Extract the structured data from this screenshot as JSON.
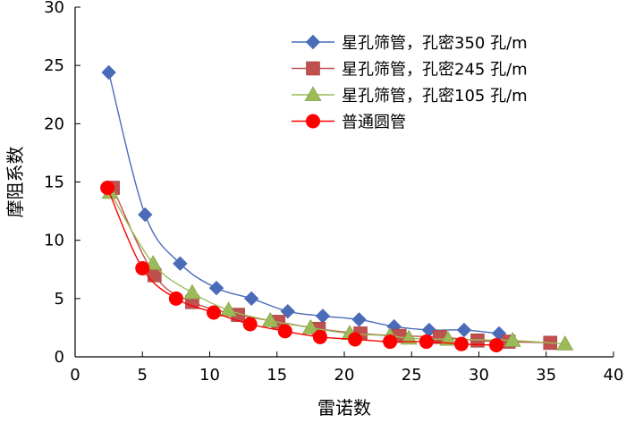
{
  "chart_data": {
    "type": "line",
    "title": "",
    "xlabel": "雷诺数",
    "ylabel": "摩阻系数",
    "xlim": [
      0,
      40
    ],
    "ylim": [
      0,
      30
    ],
    "xticks": [
      0,
      5,
      10,
      15,
      20,
      25,
      30,
      35,
      40
    ],
    "yticks": [
      0,
      5,
      10,
      15,
      20,
      25,
      30
    ],
    "grid": false,
    "legend_position": "top-right",
    "series": [
      {
        "name": "星孔筛管，孔密350 孔/m",
        "color": "#4a6bb8",
        "marker": "diamond",
        "x": [
          2.5,
          5.2,
          7.8,
          10.5,
          13.1,
          15.8,
          18.4,
          21.1,
          23.7,
          26.3,
          28.9,
          31.5
        ],
        "y": [
          24.4,
          12.2,
          8.0,
          5.9,
          5.0,
          3.9,
          3.5,
          3.2,
          2.6,
          2.3,
          2.3,
          2.0
        ]
      },
      {
        "name": "星孔筛管，孔密245 孔/m",
        "color": "#c0504d",
        "marker": "square",
        "x": [
          2.8,
          5.9,
          8.7,
          12.1,
          15.1,
          18.1,
          21.2,
          24.1,
          27.1,
          29.9,
          32.2,
          35.3
        ],
        "y": [
          14.5,
          7.0,
          4.7,
          3.6,
          3.0,
          2.4,
          2.0,
          1.8,
          1.7,
          1.4,
          1.3,
          1.2
        ]
      },
      {
        "name": "星孔筛管，孔密105 孔/m",
        "color": "#9bbb59",
        "marker": "triangle",
        "x": [
          2.6,
          5.8,
          8.7,
          11.4,
          14.5,
          17.5,
          20.4,
          23.4,
          24.8,
          27.7,
          32.5,
          36.4
        ],
        "y": [
          14.1,
          8.0,
          5.5,
          4.0,
          3.1,
          2.5,
          2.0,
          1.8,
          1.6,
          1.5,
          1.4,
          1.1
        ]
      },
      {
        "name": "普通圆管",
        "color": "#ff0000",
        "marker": "circle",
        "x": [
          2.4,
          5.0,
          7.5,
          10.3,
          13.0,
          15.6,
          18.2,
          20.8,
          23.4,
          26.1,
          28.7,
          31.3
        ],
        "y": [
          14.5,
          7.6,
          5.0,
          3.8,
          2.8,
          2.2,
          1.7,
          1.5,
          1.3,
          1.3,
          1.1,
          1.0
        ]
      }
    ]
  }
}
